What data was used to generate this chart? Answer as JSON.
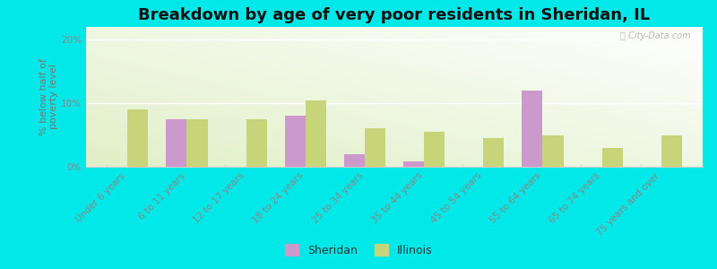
{
  "categories": [
    "Under 6 years",
    "6 to 11 years",
    "12 to 17 years",
    "18 to 24 years",
    "25 to 34 years",
    "35 to 44 years",
    "45 to 54 years",
    "55 to 64 years",
    "65 to 74 years",
    "75 years and over"
  ],
  "sheridan": [
    0,
    7.5,
    0,
    8.0,
    2.0,
    0.8,
    0,
    12.0,
    0,
    0
  ],
  "illinois": [
    9.0,
    7.5,
    7.5,
    10.5,
    6.0,
    5.5,
    4.5,
    5.0,
    3.0,
    5.0
  ],
  "sheridan_color": "#cc99cc",
  "illinois_color": "#c8d47a",
  "background_outer": "#00e8e8",
  "title": "Breakdown by age of very poor residents in Sheridan, IL",
  "ylabel": "% below half of\npoverty level",
  "ylim": [
    0,
    22
  ],
  "yticks": [
    0,
    10,
    20
  ],
  "ytick_labels": [
    "0%",
    "10%",
    "20%"
  ],
  "bar_width": 0.35,
  "title_fontsize": 13,
  "tick_fontsize": 7.5,
  "ylabel_fontsize": 8,
  "legend_sheridan": "Sheridan",
  "legend_illinois": "Illinois"
}
